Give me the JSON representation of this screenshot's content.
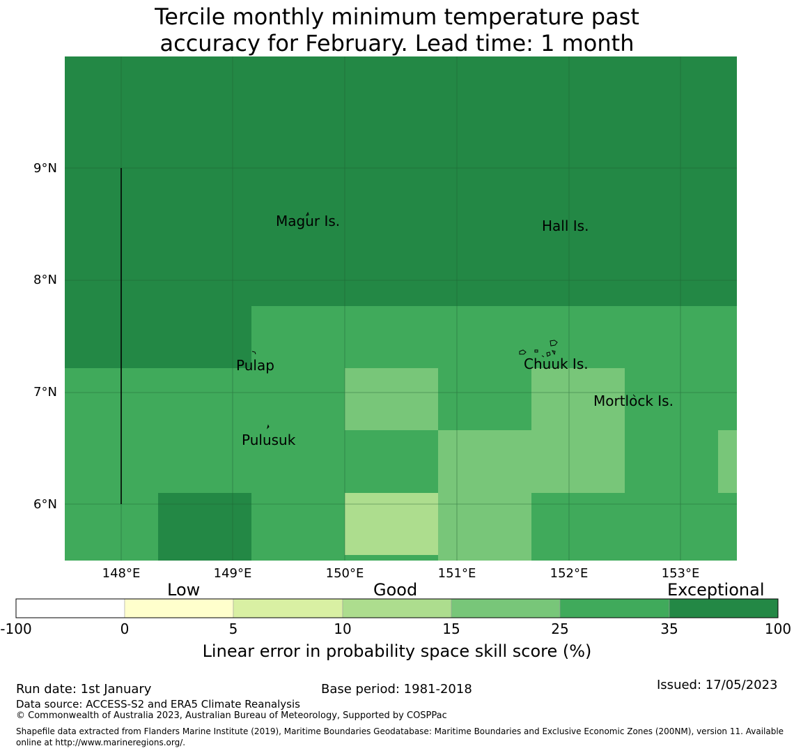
{
  "title": {
    "line1": "Tercile monthly minimum temperature past",
    "line2": "accuracy for February. Lead time: 1 month"
  },
  "map": {
    "lat_labels": [
      "9°N",
      "8°N",
      "7°N",
      "6°N"
    ],
    "lon_labels": [
      "148°E",
      "149°E",
      "150°E",
      "151°E",
      "152°E",
      "153°E"
    ],
    "places": [
      "Magur Is.",
      "Hall Is.",
      "Pulap",
      "Chuuk Is.",
      "Mortlock Is.",
      "Pulusuk"
    ],
    "colors": {
      "exceptional": "#238845",
      "band_25_35": "#40aa5b",
      "band_15_25": "#78c679",
      "band_10_15": "#addd8e",
      "band_5_10": "#d9f0a3",
      "band_0_5": "#ffffcc",
      "band_neg": "#ffffff"
    }
  },
  "colorbar": {
    "category_labels": [
      "Low",
      "Good",
      "Exceptional"
    ],
    "ticks": [
      "-100",
      "0",
      "5",
      "10",
      "15",
      "25",
      "35",
      "100"
    ],
    "label": "Linear error in probability space skill score (%)"
  },
  "footer": {
    "run_date": "Run date: 1st January",
    "base_period": "Base period: 1981-2018",
    "issued": "Issued: 17/05/2023",
    "data_source": "Data source: ACCESS-S2 and ERA5 Climate Reanalysis",
    "copyright": "© Commonwealth of Australia 2023, Australian Bureau of Meteorology, Supported by COSPPac",
    "shapefile": "Shapefile data extracted from Flanders Marine Institute (2019), Maritime Boundaries Geodatabase: Maritime Boundaries and Exclusive Economic Zones (200NM), version 11. Available online at http://www.marineregions.org/."
  }
}
